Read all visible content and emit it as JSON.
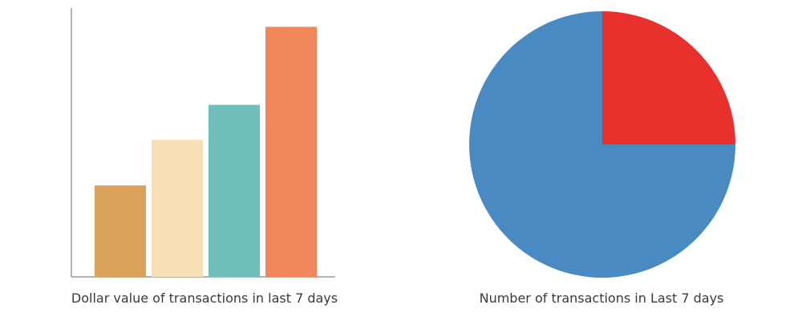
{
  "chart_data": [
    {
      "type": "bar",
      "title": "Dollar value of transactions in last 7 days",
      "categories": [
        "",
        "",
        "",
        ""
      ],
      "values": [
        34,
        51,
        64,
        93
      ],
      "ylim": [
        0,
        100
      ],
      "grid": false,
      "legend": "none",
      "colors": [
        "#DBA35A",
        "#F6DFB5",
        "#6FC0BB",
        "#F2875C"
      ],
      "axis_color": "#999999"
    },
    {
      "type": "pie",
      "title": "Number of transactions in Last 7 days",
      "values": [
        25,
        75
      ],
      "labels": [
        "",
        ""
      ],
      "legend": "none",
      "colors": [
        "#E8302C",
        "#498AC2"
      ]
    }
  ]
}
